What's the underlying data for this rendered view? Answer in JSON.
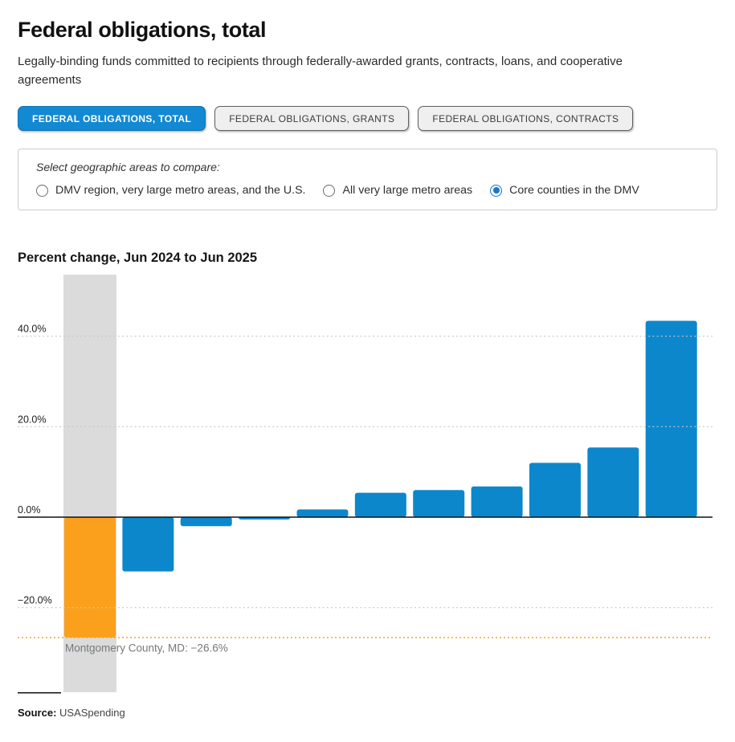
{
  "page": {
    "title": "Federal obligations, total",
    "subtitle": "Legally-binding funds committed to recipients through federally-awarded grants, contracts, loans, and cooperative agreements",
    "source_label": "Source:",
    "source_value": "USASpending"
  },
  "tabs": [
    {
      "label": "FEDERAL OBLIGATIONS, TOTAL",
      "active": true
    },
    {
      "label": "FEDERAL OBLIGATIONS, GRANTS",
      "active": false
    },
    {
      "label": "FEDERAL OBLIGATIONS, CONTRACTS",
      "active": false
    }
  ],
  "geo_selector": {
    "label": "Select geographic areas to compare:",
    "options": [
      {
        "label": "DMV region, very large metro areas, and the U.S.",
        "selected": false
      },
      {
        "label": "All very large metro areas",
        "selected": false
      },
      {
        "label": "Core counties in the DMV",
        "selected": true
      }
    ]
  },
  "chart_data": {
    "type": "bar",
    "title": "Percent change, Jun 2024 to Jun 2025",
    "values": [
      -26.6,
      -12.0,
      -2.0,
      -0.5,
      1.7,
      5.4,
      6.0,
      6.8,
      12.0,
      15.4,
      43.4
    ],
    "highlight_index": 0,
    "highlight_label": "Montgomery County, MD",
    "highlight_value": -26.6,
    "annotation": "Montgomery County, MD: −26.6%",
    "threshold_value": -26.6,
    "ytick_labels": [
      "40.0%",
      "20.0%",
      "0.0%",
      "−20.0%"
    ],
    "ytick_values": [
      40,
      20,
      0,
      -20
    ],
    "ylim": [
      -38.5,
      53.8
    ],
    "grid": "horizontal-dotted",
    "legend": "none",
    "xlabel": "",
    "ylabel": "",
    "bar_color": "#0D87CC",
    "highlight_color": "#FBA01C",
    "band_color": "#DBDBDB",
    "threshold_color": "#FBA01C",
    "gridline_color": "#C7C7C7",
    "zeroline_color": "#111111",
    "tick_label_color": "#1D1D1D",
    "annotation_color": "#75787B"
  },
  "colors": {
    "active_tab_blue": "#1289D2",
    "radio_accent_blue": "#1577D0"
  }
}
